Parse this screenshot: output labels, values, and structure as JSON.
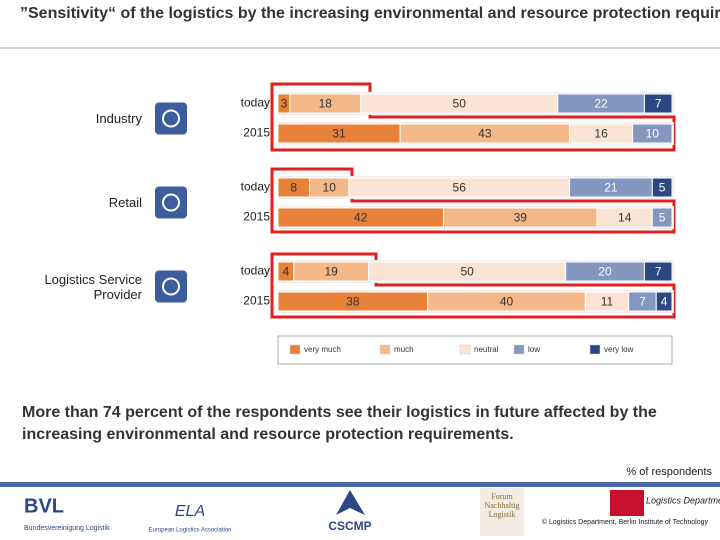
{
  "chart_data": {
    "type": "stacked-bar-horizontal",
    "title": "”Sensitivity“ of the logistics by the increasing environmental and resource protection requirements",
    "subtitle": "More than 74 percent of the respondents see their logistics in future affected by the increasing environmental and resource protection requirements.",
    "note": "% of respondents",
    "groups": [
      "Industry",
      "Retail",
      "Logistics Service Provider"
    ],
    "categories": [
      "today",
      "2015",
      "today",
      "2015",
      "today",
      "2015"
    ],
    "xlim": [
      0,
      100
    ],
    "series": [
      {
        "name": "very much",
        "color": "#e8813a",
        "values": [
          3,
          31,
          8,
          42,
          4,
          38
        ]
      },
      {
        "name": "much",
        "color": "#f5b888",
        "values": [
          18,
          43,
          10,
          39,
          19,
          40
        ]
      },
      {
        "name": "neutral",
        "color": "#fbe4d3",
        "values": [
          50,
          16,
          56,
          14,
          50,
          11
        ]
      },
      {
        "name": "low",
        "color": "#8397c1",
        "values": [
          22,
          10,
          21,
          5,
          20,
          7
        ]
      },
      {
        "name": "very low",
        "color": "#2d4784",
        "values": [
          7,
          null,
          5,
          null,
          7,
          4
        ]
      }
    ]
  },
  "footer": {
    "bvl": "BVL",
    "bvl_sub": "Bundesvereinigung Logistik",
    "ela": "ELA",
    "ela_sub": "European Logistics Association",
    "cscmp": "CSCMP",
    "forum": "Forum Nachhaltig Logistik",
    "dept": "Logistics Department",
    "copyright": "© Logistics Department, Berlin Institute of Technology"
  }
}
